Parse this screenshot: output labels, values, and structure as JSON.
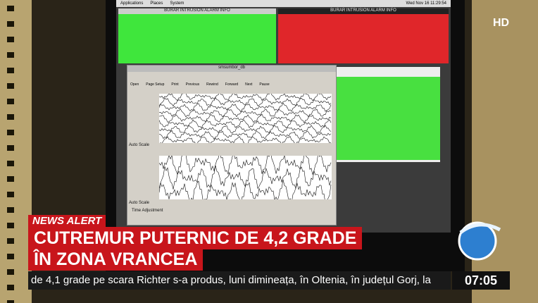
{
  "screen": {
    "menu": [
      "Applications",
      "Places",
      "System"
    ],
    "clock": "Wed Nov 16 11:29:54",
    "alarm_windows": [
      "BURAR INTRUSION ALARM INFO",
      "BURAR INTRUSION ALARM INFO"
    ],
    "viewer_title": "smsumbor_db",
    "toolbar": [
      "Open",
      "Page Setup",
      "Print",
      "Previous",
      "Rewind",
      "Forward",
      "Next",
      "Pause"
    ],
    "auto_scale": [
      "Auto Scale",
      "Auto Scale"
    ],
    "time_adjustment": "Time Adjustment"
  },
  "overlay": {
    "channel": "HD",
    "tag": "NEWS ALERT",
    "headline": [
      "CUTREMUR PUTERNIC DE 4,2 GRADE",
      "ÎN ZONA VRANCEA"
    ],
    "ticker": "de 4,1 grade pe scara Richter s-a produs, luni dimineața, în Oltenia, în județul Gorj, la",
    "time": "07:05"
  }
}
